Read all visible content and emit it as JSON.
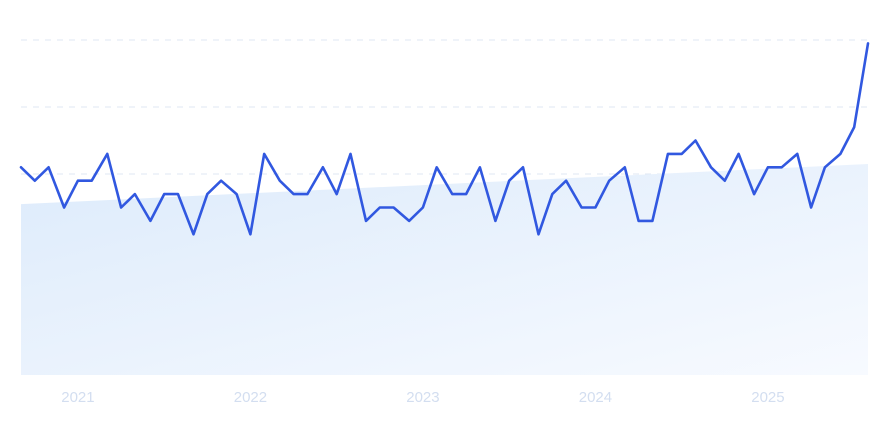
{
  "chart_data": {
    "type": "line",
    "title": "",
    "xlabel": "",
    "ylabel": "",
    "x_ticks": [
      "2021",
      "2022",
      "2023",
      "2024",
      "2025"
    ],
    "x_tick_positions": [
      2021.0,
      2022.0,
      2023.0,
      2024.0,
      2025.0
    ],
    "y_range": [
      0,
      100
    ],
    "x_range": [
      2020.67,
      2025.58
    ],
    "grid": true,
    "legend": "none",
    "series": [
      {
        "values": [
          [
            2020.67,
            62
          ],
          [
            2020.75,
            58
          ],
          [
            2020.83,
            62
          ],
          [
            2020.92,
            50
          ],
          [
            2021.0,
            58
          ],
          [
            2021.08,
            58
          ],
          [
            2021.17,
            66
          ],
          [
            2021.25,
            50
          ],
          [
            2021.33,
            54
          ],
          [
            2021.42,
            46
          ],
          [
            2021.5,
            54
          ],
          [
            2021.58,
            54
          ],
          [
            2021.67,
            42
          ],
          [
            2021.75,
            54
          ],
          [
            2021.83,
            58
          ],
          [
            2021.92,
            54
          ],
          [
            2022.0,
            42
          ],
          [
            2022.08,
            66
          ],
          [
            2022.17,
            58
          ],
          [
            2022.25,
            54
          ],
          [
            2022.33,
            54
          ],
          [
            2022.42,
            62
          ],
          [
            2022.5,
            54
          ],
          [
            2022.58,
            66
          ],
          [
            2022.67,
            46
          ],
          [
            2022.75,
            50
          ],
          [
            2022.83,
            50
          ],
          [
            2022.92,
            46
          ],
          [
            2023.0,
            50
          ],
          [
            2023.08,
            62
          ],
          [
            2023.17,
            54
          ],
          [
            2023.25,
            54
          ],
          [
            2023.33,
            62
          ],
          [
            2023.42,
            46
          ],
          [
            2023.5,
            58
          ],
          [
            2023.58,
            62
          ],
          [
            2023.67,
            42
          ],
          [
            2023.75,
            54
          ],
          [
            2023.83,
            58
          ],
          [
            2023.92,
            50
          ],
          [
            2024.0,
            50
          ],
          [
            2024.08,
            58
          ],
          [
            2024.17,
            62
          ],
          [
            2024.25,
            46
          ],
          [
            2024.33,
            46
          ],
          [
            2024.42,
            66
          ],
          [
            2024.5,
            66
          ],
          [
            2024.58,
            70
          ],
          [
            2024.67,
            62
          ],
          [
            2024.75,
            58
          ],
          [
            2024.83,
            66
          ],
          [
            2024.92,
            54
          ],
          [
            2025.0,
            62
          ],
          [
            2025.08,
            62
          ],
          [
            2025.17,
            66
          ],
          [
            2025.25,
            50
          ],
          [
            2025.33,
            62
          ],
          [
            2025.42,
            66
          ],
          [
            2025.5,
            74
          ],
          [
            2025.58,
            99
          ]
        ]
      },
      {
        "values": [
          [
            2020.67,
            51
          ],
          [
            2025.58,
            63
          ]
        ]
      }
    ],
    "colors": {
      "line": "#3158e0",
      "area_light": "#eaf2fd",
      "area_dark": "#ddebfb"
    }
  }
}
